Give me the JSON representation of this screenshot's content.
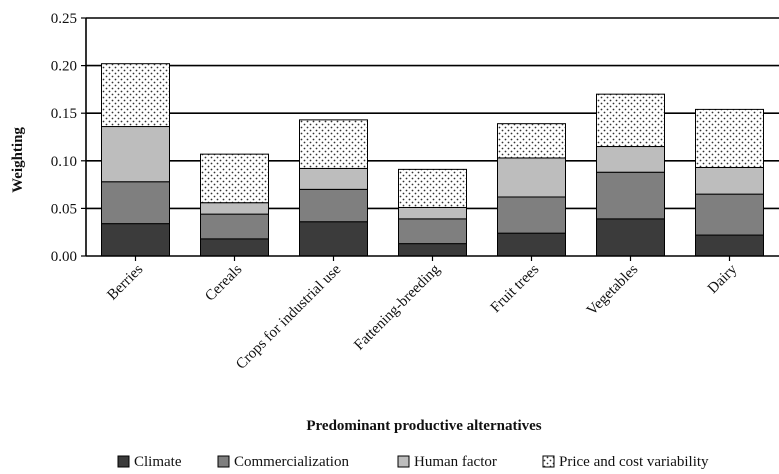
{
  "chart_data": {
    "type": "bar",
    "stacked": true,
    "categories": [
      "Berries",
      "Cereals",
      "Crops for industrial use",
      "Fattening-breeding",
      "Fruit trees",
      "Vegetables",
      "Dairy"
    ],
    "series": [
      {
        "name": "Climate",
        "values": [
          0.034,
          0.018,
          0.036,
          0.013,
          0.024,
          0.039,
          0.022
        ]
      },
      {
        "name": "Commercialization",
        "values": [
          0.044,
          0.026,
          0.034,
          0.026,
          0.038,
          0.049,
          0.043
        ]
      },
      {
        "name": "Human factor",
        "values": [
          0.058,
          0.012,
          0.022,
          0.012,
          0.041,
          0.027,
          0.028
        ]
      },
      {
        "name": "Price and cost variability",
        "values": [
          0.066,
          0.051,
          0.051,
          0.04,
          0.036,
          0.055,
          0.061
        ]
      }
    ],
    "ylabel": "Weighting",
    "xlabel": "Predominant productive alternatives",
    "ylim": [
      0,
      0.25
    ],
    "yticks": [
      "0.00",
      "0.05",
      "0.10",
      "0.15",
      "0.20",
      "0.25"
    ],
    "grid": true,
    "legend_position": "bottom",
    "colors": [
      "#3b3b3b",
      "#7f7f7f",
      "#bdbdbd",
      "#ffffff"
    ],
    "patterns": [
      "solid",
      "solid",
      "solid",
      "dotted"
    ]
  }
}
